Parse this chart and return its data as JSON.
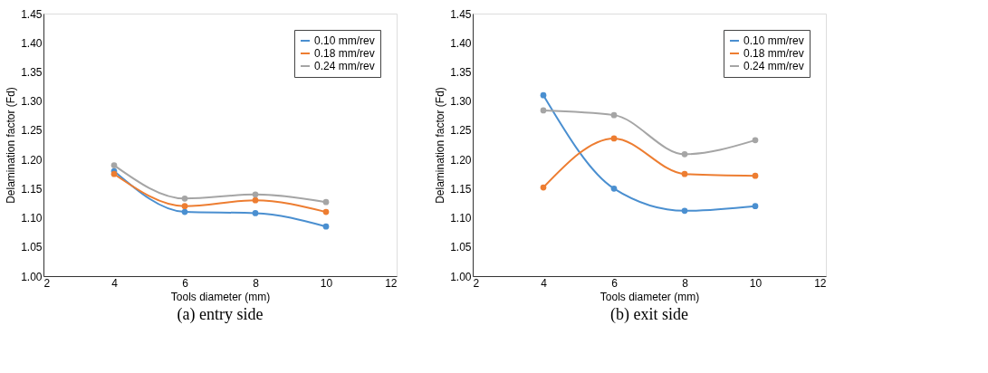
{
  "chart_data": [
    {
      "type": "line",
      "title": "(a) entry side",
      "xlabel": "Tools diameter (mm)",
      "ylabel": "Delamination factor (Fd)",
      "x": [
        4,
        6,
        8,
        10
      ],
      "series": [
        {
          "name": "0.10 mm/rev",
          "color": "#4a8fd0",
          "values": [
            1.18,
            1.11,
            1.108,
            1.085
          ]
        },
        {
          "name": "0.18 mm/rev",
          "color": "#ed7d31",
          "values": [
            1.175,
            1.12,
            1.13,
            1.11
          ]
        },
        {
          "name": "0.24 mm/rev",
          "color": "#a5a5a5",
          "values": [
            1.19,
            1.133,
            1.14,
            1.127
          ]
        }
      ],
      "xlim": [
        2,
        12
      ],
      "xticks": [
        2,
        4,
        6,
        8,
        10,
        12
      ],
      "ylim": [
        1.0,
        1.45
      ],
      "yticks": [
        {
          "value": 1.0,
          "label": "1.00"
        },
        {
          "value": 1.05,
          "label": "1.05"
        },
        {
          "value": 1.1,
          "label": "1.10"
        },
        {
          "value": 1.15,
          "label": "1.15"
        },
        {
          "value": 1.2,
          "label": "1.20"
        },
        {
          "value": 1.25,
          "label": "1.25"
        },
        {
          "value": 1.3,
          "label": "1.30"
        },
        {
          "value": 1.35,
          "label": "1.35"
        },
        {
          "value": 1.4,
          "label": "1.40"
        },
        {
          "value": 1.45,
          "label": "1.45"
        }
      ],
      "grid": false,
      "legend": "top right",
      "marker": "circle",
      "line_style": "solid"
    },
    {
      "type": "line",
      "title": "(b) exit side",
      "xlabel": "Tools diameter (mm)",
      "ylabel": "Delamination factor (Fd)",
      "x": [
        4,
        6,
        8,
        10
      ],
      "series": [
        {
          "name": "0.10 mm/rev",
          "color": "#4a8fd0",
          "values": [
            1.31,
            1.15,
            1.112,
            1.12
          ]
        },
        {
          "name": "0.18 mm/rev",
          "color": "#ed7d31",
          "values": [
            1.152,
            1.236,
            1.175,
            1.172
          ]
        },
        {
          "name": "0.24 mm/rev",
          "color": "#a5a5a5",
          "values": [
            1.284,
            1.276,
            1.209,
            1.233
          ]
        }
      ],
      "xlim": [
        2,
        12
      ],
      "xticks": [
        2,
        4,
        6,
        8,
        10,
        12
      ],
      "ylim": [
        1.0,
        1.45
      ],
      "yticks": [
        {
          "value": 1.0,
          "label": "1.00"
        },
        {
          "value": 1.05,
          "label": "1.05"
        },
        {
          "value": 1.1,
          "label": "1.10"
        },
        {
          "value": 1.15,
          "label": "1.15"
        },
        {
          "value": 1.2,
          "label": "1.20"
        },
        {
          "value": 1.25,
          "label": "1.25"
        },
        {
          "value": 1.3,
          "label": "1.30"
        },
        {
          "value": 1.35,
          "label": "1.35"
        },
        {
          "value": 1.4,
          "label": "1.40"
        },
        {
          "value": 1.45,
          "label": "1.45"
        }
      ],
      "grid": false,
      "legend": "top right",
      "marker": "circle",
      "line_style": "solid"
    }
  ]
}
